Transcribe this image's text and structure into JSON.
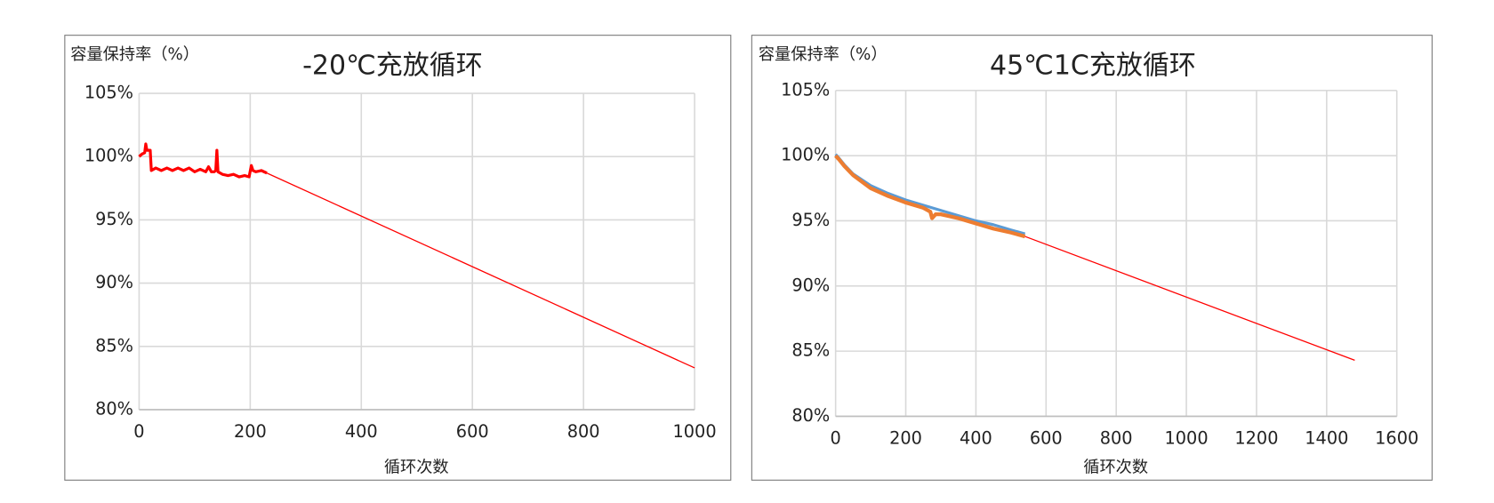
{
  "chart_data": [
    {
      "type": "line",
      "title": "-20℃充放循环",
      "y_label": "容量保持率（%）",
      "x_label": "循环次数",
      "xlim": [
        0,
        1000
      ],
      "xticks": [
        0,
        200,
        400,
        600,
        800,
        1000
      ],
      "ylim": [
        80,
        105
      ],
      "yticks": [
        {
          "value": 80,
          "label": "80%"
        },
        {
          "value": 85,
          "label": "85%"
        },
        {
          "value": 90,
          "label": "90%"
        },
        {
          "value": 95,
          "label": "95%"
        },
        {
          "value": 100,
          "label": "100%"
        },
        {
          "value": 105,
          "label": "105%"
        }
      ],
      "grid": true,
      "series": [
        {
          "color": "#ff0000",
          "line_width": 3,
          "x": [
            0,
            5,
            10,
            12,
            14,
            18,
            20,
            22,
            30,
            40,
            50,
            60,
            70,
            80,
            90,
            100,
            110,
            120,
            125,
            130,
            135,
            138,
            140,
            142,
            150,
            160,
            170,
            180,
            190,
            198,
            202,
            205,
            210,
            220,
            230
          ],
          "values": [
            100.0,
            100.2,
            100.3,
            101.0,
            100.5,
            100.5,
            100.5,
            98.9,
            99.1,
            98.9,
            99.1,
            98.9,
            99.1,
            98.9,
            99.1,
            98.8,
            99.0,
            98.8,
            99.2,
            98.8,
            98.8,
            98.9,
            100.5,
            98.8,
            98.6,
            98.5,
            98.6,
            98.4,
            98.5,
            98.4,
            99.3,
            98.9,
            98.8,
            98.9,
            98.7
          ]
        },
        {
          "color": "#ff0000",
          "line_width": 1.2,
          "x": [
            230,
            1000
          ],
          "values": [
            98.7,
            83.3
          ]
        }
      ]
    },
    {
      "type": "line",
      "title": "45℃1C充放循环",
      "y_label": "容量保持率（%）",
      "x_label": "循环次数",
      "xlim": [
        0,
        1600
      ],
      "xticks": [
        0,
        200,
        400,
        600,
        800,
        1000,
        1200,
        1400,
        1600
      ],
      "ylim": [
        80,
        105
      ],
      "yticks": [
        {
          "value": 80,
          "label": "80%"
        },
        {
          "value": 85,
          "label": "85%"
        },
        {
          "value": 90,
          "label": "90%"
        },
        {
          "value": 95,
          "label": "95%"
        },
        {
          "value": 100,
          "label": "100%"
        },
        {
          "value": 105,
          "label": "105%"
        }
      ],
      "grid": true,
      "series": [
        {
          "color": "#5b9bd5",
          "line_width": 3,
          "x": [
            0,
            10,
            25,
            50,
            100,
            150,
            200,
            250,
            300,
            350,
            400,
            450,
            500,
            540
          ],
          "values": [
            100.1,
            99.8,
            99.3,
            98.6,
            97.7,
            97.1,
            96.6,
            96.2,
            95.8,
            95.4,
            95.0,
            94.7,
            94.3,
            94.0
          ]
        },
        {
          "color": "#ed7d31",
          "line_width": 4,
          "x": [
            0,
            10,
            25,
            50,
            100,
            150,
            200,
            250,
            270,
            275,
            285,
            300,
            350,
            400,
            450,
            500,
            540
          ],
          "values": [
            100.0,
            99.7,
            99.2,
            98.5,
            97.5,
            96.9,
            96.4,
            96.0,
            95.7,
            95.2,
            95.5,
            95.5,
            95.2,
            94.8,
            94.4,
            94.1,
            93.8
          ]
        },
        {
          "color": "#ff0000",
          "line_width": 1.2,
          "x": [
            540,
            1480
          ],
          "values": [
            93.8,
            84.3
          ]
        }
      ]
    }
  ]
}
